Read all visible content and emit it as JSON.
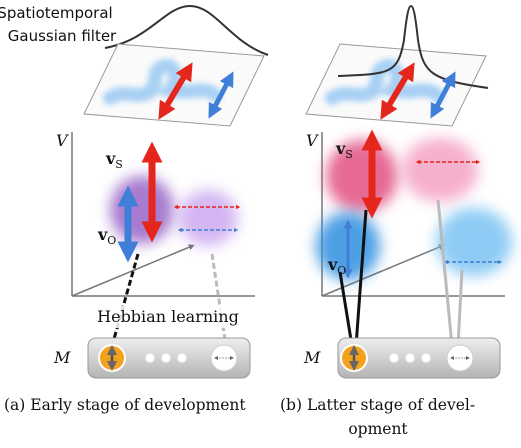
{
  "filter_label": [
    "Spatiotemporal",
    "Gaussian filter"
  ],
  "axis_label": "V",
  "motor_label": "M",
  "velocity_labels": {
    "self": {
      "main": "v",
      "sub": "S"
    },
    "other": {
      "main": "v",
      "sub": "O"
    }
  },
  "learning_label": "Hebbian learning",
  "captions": [
    [
      "(a) Early stage of development"
    ],
    [
      "(b) Latter stage of devel-",
      "opment"
    ]
  ]
}
